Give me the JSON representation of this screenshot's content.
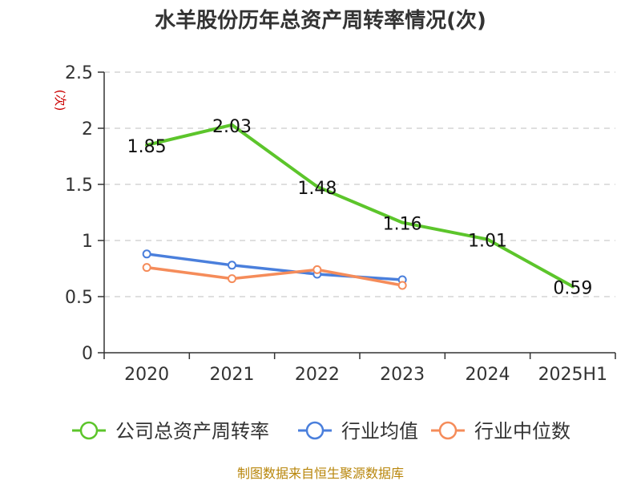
{
  "chart_data": {
    "type": "line",
    "title": "水羊股份历年总资产周转率情况(次)",
    "ylabel": "(次)",
    "xlabel": "",
    "ylim": [
      0,
      2.5
    ],
    "yticks": [
      "0",
      "0.5",
      "1",
      "1.5",
      "2",
      "2.5"
    ],
    "ytick_values": [
      0,
      0.5,
      1,
      1.5,
      2,
      2.5
    ],
    "categories": [
      "2020",
      "2021",
      "2022",
      "2023",
      "2024",
      "2025H1"
    ],
    "grid": true,
    "legend_position": "bottom",
    "series": [
      {
        "name": "公司总资产周转率",
        "color": "#5cc52b",
        "values": [
          1.85,
          2.03,
          1.48,
          1.16,
          1.01,
          0.59
        ],
        "labels": [
          "1.85",
          "2.03",
          "1.48",
          "1.16",
          "1.01",
          "0.59"
        ]
      },
      {
        "name": "行业均值",
        "color": "#4a7fdc",
        "values": [
          0.88,
          0.78,
          0.7,
          0.65,
          null,
          null
        ]
      },
      {
        "name": "行业中位数",
        "color": "#f58c5a",
        "values": [
          0.76,
          0.66,
          0.74,
          0.6,
          null,
          null
        ]
      }
    ]
  },
  "source_text": "制图数据来自恒生聚源数据库",
  "colors": {
    "axis": "#333333",
    "grid": "#cccccc",
    "ylabel": "#cc0000",
    "source": "#b8860b"
  }
}
